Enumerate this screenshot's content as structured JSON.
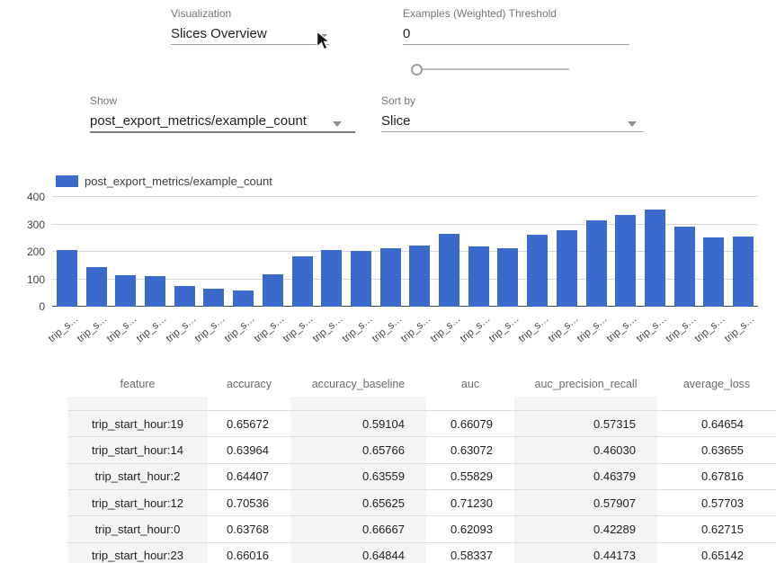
{
  "controls": {
    "visualization": {
      "label": "Visualization",
      "value": "Slices Overview"
    },
    "threshold": {
      "label": "Examples (Weighted) Threshold",
      "value": "0",
      "slider_value": 0
    },
    "show": {
      "label": "Show",
      "value": "post_export_metrics/example_count"
    },
    "sort": {
      "label": "Sort by",
      "value": "Slice"
    }
  },
  "chart_data": {
    "type": "bar",
    "legend": "post_export_metrics/example_count",
    "series_color": "#3a6acb",
    "categories": [
      "trip_s…",
      "trip_s…",
      "trip_s…",
      "trip_s…",
      "trip_s…",
      "trip_s…",
      "trip_s…",
      "trip_s…",
      "trip_s…",
      "trip_s…",
      "trip_s…",
      "trip_s…",
      "trip_s…",
      "trip_s…",
      "trip_s…",
      "trip_s…",
      "trip_s…",
      "trip_s…",
      "trip_s…",
      "trip_s…",
      "trip_s…",
      "trip_s…",
      "trip_s…",
      "trip_s…"
    ],
    "values": [
      207,
      145,
      115,
      110,
      76,
      65,
      60,
      118,
      183,
      208,
      203,
      213,
      224,
      266,
      221,
      212,
      263,
      279,
      316,
      335,
      354,
      292,
      252,
      256
    ],
    "xlabel": "",
    "ylabel": "",
    "ylim": [
      0,
      400
    ],
    "yticks": [
      0,
      100,
      200,
      300,
      400
    ],
    "grid": true,
    "legend_position": "top-left"
  },
  "table": {
    "columns": [
      "feature",
      "accuracy",
      "accuracy_baseline",
      "auc",
      "auc_precision_recall",
      "average_loss"
    ],
    "rows": [
      [
        "trip_start_hour:19",
        "0.65672",
        "0.59104",
        "0.66079",
        "0.57315",
        "0.64654"
      ],
      [
        "trip_start_hour:14",
        "0.63964",
        "0.65766",
        "0.63072",
        "0.46030",
        "0.63655"
      ],
      [
        "trip_start_hour:2",
        "0.64407",
        "0.63559",
        "0.55829",
        "0.46379",
        "0.67816"
      ],
      [
        "trip_start_hour:12",
        "0.70536",
        "0.65625",
        "0.71230",
        "0.57907",
        "0.57703"
      ],
      [
        "trip_start_hour:0",
        "0.63768",
        "0.66667",
        "0.62093",
        "0.42289",
        "0.62715"
      ],
      [
        "trip_start_hour:23",
        "0.66016",
        "0.64844",
        "0.58337",
        "0.44173",
        "0.65142"
      ]
    ]
  }
}
